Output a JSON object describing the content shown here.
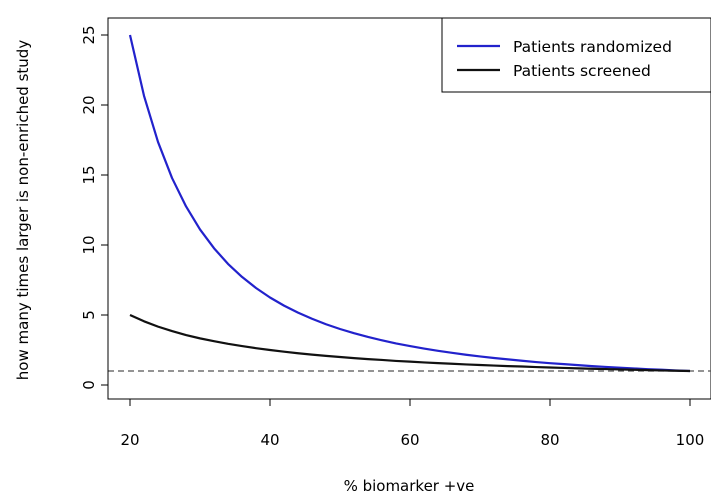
{
  "chart_data": {
    "type": "line",
    "title": "",
    "xlabel": "% biomarker +ve",
    "ylabel": "how many times larger is non-enriched study",
    "xlim": [
      20,
      100
    ],
    "ylim": [
      0,
      25
    ],
    "xticks": [
      20,
      40,
      60,
      80,
      100
    ],
    "yticks": [
      0,
      5,
      10,
      15,
      20,
      25
    ],
    "reference_line": {
      "y": 1,
      "style": "dashed",
      "color": "#555555"
    },
    "legend": {
      "position": "top-right"
    },
    "grid": false,
    "x": [
      20,
      22,
      24,
      26,
      28,
      30,
      32,
      34,
      36,
      38,
      40,
      42,
      44,
      46,
      48,
      50,
      52,
      54,
      56,
      58,
      60,
      62,
      64,
      66,
      68,
      70,
      72,
      74,
      76,
      78,
      80,
      82,
      84,
      86,
      88,
      90,
      92,
      94,
      96,
      98,
      100
    ],
    "series": [
      {
        "name": "Patients randomized",
        "color": "#2222cc",
        "values": [
          25.0,
          20.66,
          17.36,
          14.79,
          12.76,
          11.11,
          9.77,
          8.65,
          7.72,
          6.93,
          6.25,
          5.67,
          5.17,
          4.73,
          4.34,
          4.0,
          3.7,
          3.43,
          3.19,
          2.97,
          2.78,
          2.6,
          2.44,
          2.3,
          2.16,
          2.04,
          1.93,
          1.83,
          1.73,
          1.64,
          1.56,
          1.49,
          1.42,
          1.35,
          1.29,
          1.23,
          1.18,
          1.13,
          1.09,
          1.04,
          1.0
        ]
      },
      {
        "name": "Patients screened",
        "color": "#111111",
        "values": [
          5.0,
          4.55,
          4.17,
          3.85,
          3.57,
          3.33,
          3.13,
          2.94,
          2.78,
          2.63,
          2.5,
          2.38,
          2.27,
          2.17,
          2.08,
          2.0,
          1.92,
          1.85,
          1.79,
          1.72,
          1.67,
          1.61,
          1.56,
          1.52,
          1.47,
          1.43,
          1.39,
          1.35,
          1.32,
          1.28,
          1.25,
          1.22,
          1.19,
          1.16,
          1.14,
          1.11,
          1.09,
          1.06,
          1.04,
          1.02,
          1.0
        ]
      }
    ]
  }
}
